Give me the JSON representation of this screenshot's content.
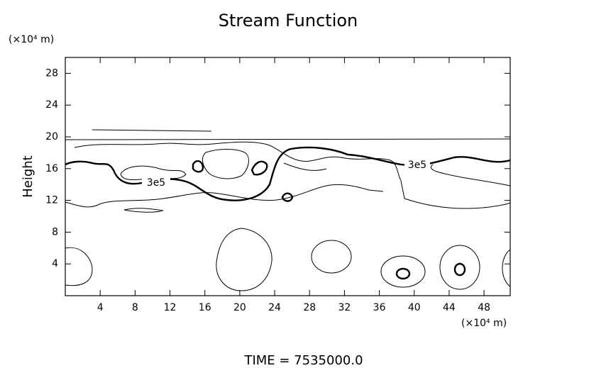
{
  "chart_data": {
    "type": "contour",
    "title": "Stream Function",
    "y_unit": "(×10⁴ m)",
    "x_unit": "(×10⁴ m)",
    "ylabel": "Height",
    "footer": "TIME = 7535000.0",
    "contour_labels": [
      "3e5",
      "3e5"
    ],
    "xlim": [
      0,
      51
    ],
    "xticks": [
      4,
      8,
      12,
      16,
      20,
      24,
      28,
      32,
      36,
      40,
      44,
      48
    ],
    "ylim": [
      0,
      30
    ],
    "yticks": [
      4,
      8,
      12,
      16,
      20,
      24,
      28
    ]
  }
}
